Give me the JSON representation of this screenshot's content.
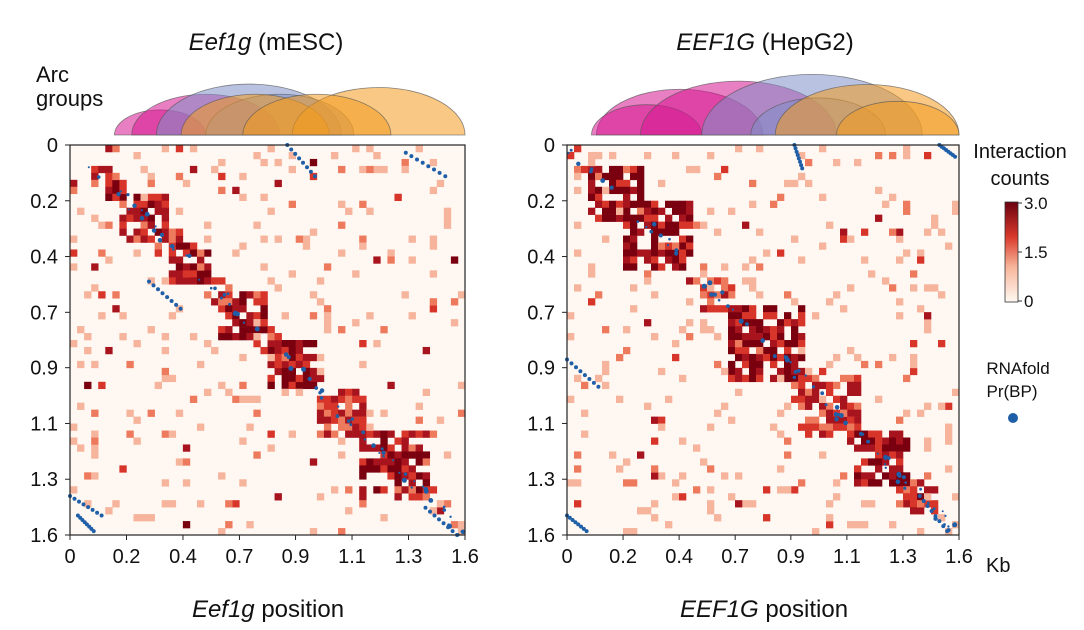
{
  "chart_data": [
    {
      "type": "heatmap",
      "title_gene": "Eef1g",
      "title_cell": "(mESC)",
      "xlabel_gene": "Eef1g",
      "xlabel_rest": "position",
      "arc_label": [
        "Arc",
        "groups"
      ],
      "ticks": [
        "0",
        "0.2",
        "0.4",
        "0.7",
        "0.9",
        "1.1",
        "1.3",
        "1.6"
      ],
      "range_kb": [
        0,
        1.6
      ],
      "diagonal_blocks": [
        {
          "start": 0.15,
          "end": 0.22,
          "intensity": 3.0
        },
        {
          "start": 0.22,
          "end": 0.4,
          "intensity": 2.2
        },
        {
          "start": 0.4,
          "end": 0.55,
          "intensity": 2.8
        },
        {
          "start": 0.62,
          "end": 0.8,
          "intensity": 2.7
        },
        {
          "start": 0.8,
          "end": 1.0,
          "intensity": 3.0
        },
        {
          "start": 1.0,
          "end": 1.2,
          "intensity": 2.0
        },
        {
          "start": 1.2,
          "end": 1.45,
          "intensity": 2.6
        }
      ],
      "arc_groups": [
        {
          "start": 0.18,
          "end": 0.55,
          "color": "#d6158f"
        },
        {
          "start": 0.25,
          "end": 0.85,
          "color": "#d6158f"
        },
        {
          "start": 0.35,
          "end": 1.1,
          "color": "#7f8fc9"
        },
        {
          "start": 0.55,
          "end": 1.15,
          "color": "#7f8fc9"
        },
        {
          "start": 0.45,
          "end": 1.05,
          "color": "#f29a1f"
        },
        {
          "start": 0.9,
          "end": 1.6,
          "color": "#f29a1f"
        },
        {
          "start": 0.7,
          "end": 1.3,
          "color": "#f29a1f"
        }
      ]
    },
    {
      "type": "heatmap",
      "title_gene": "EEF1G",
      "title_cell": "(HepG2)",
      "xlabel_gene": "EEF1G",
      "xlabel_rest": "position",
      "unit": "Kb",
      "ticks": [
        "0",
        "0.2",
        "0.4",
        "0.7",
        "0.9",
        "1.1",
        "1.3",
        "1.6"
      ],
      "range_kb": [
        0,
        1.6
      ],
      "diagonal_blocks": [
        {
          "start": 0.1,
          "end": 0.3,
          "intensity": 2.6
        },
        {
          "start": 0.25,
          "end": 0.5,
          "intensity": 2.9
        },
        {
          "start": 0.55,
          "end": 0.68,
          "intensity": 1.8
        },
        {
          "start": 0.68,
          "end": 0.95,
          "intensity": 2.9
        },
        {
          "start": 0.95,
          "end": 1.2,
          "intensity": 2.0
        },
        {
          "start": 1.2,
          "end": 1.38,
          "intensity": 3.0
        },
        {
          "start": 1.38,
          "end": 1.5,
          "intensity": 2.2
        }
      ],
      "arc_groups": [
        {
          "start": 0.12,
          "end": 0.8,
          "color": "#d6158f"
        },
        {
          "start": 0.1,
          "end": 0.55,
          "color": "#d6158f"
        },
        {
          "start": 0.3,
          "end": 1.1,
          "color": "#d6158f"
        },
        {
          "start": 0.55,
          "end": 1.45,
          "color": "#7f8fc9"
        },
        {
          "start": 0.75,
          "end": 1.3,
          "color": "#7f8fc9"
        },
        {
          "start": 0.85,
          "end": 1.6,
          "color": "#f29a1f"
        },
        {
          "start": 1.1,
          "end": 1.6,
          "color": "#f29a1f"
        }
      ]
    }
  ],
  "colorbar": {
    "title": [
      "Interaction",
      "counts"
    ],
    "ticks": [
      "3.0",
      "1.5",
      "0"
    ],
    "range": [
      0,
      3.0
    ]
  },
  "legend": {
    "title": [
      "RNAfold",
      "Pr(BP)"
    ],
    "dot_color": "#1f5fa8"
  }
}
